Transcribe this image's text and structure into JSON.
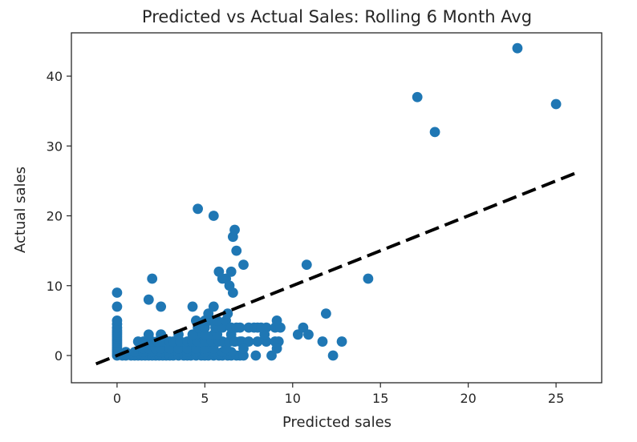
{
  "chart_data": {
    "type": "scatter",
    "title": "Predicted vs Actual Sales: Rolling 6 Month Avg",
    "xlabel": "Predicted sales",
    "ylabel": "Actual sales",
    "xlim": [
      -2.6,
      27.6
    ],
    "ylim": [
      -3.9,
      46.2
    ],
    "x_ticks": [
      0,
      5,
      10,
      15,
      20,
      25
    ],
    "x_tick_labels": [
      "0",
      "5",
      "10",
      "15",
      "20",
      "25"
    ],
    "y_ticks": [
      0,
      10,
      20,
      30,
      40
    ],
    "y_tick_labels": [
      "0",
      "10",
      "20",
      "30",
      "40"
    ],
    "grid": false,
    "legend": "none",
    "colors": {
      "points": "#1f77b4",
      "line": "#000000",
      "axes": "#262626"
    },
    "reference_line": {
      "style": "dashed",
      "x": [
        -1.2,
        26.3
      ],
      "y": [
        -1.2,
        26.3
      ]
    },
    "series": [
      {
        "x": [
          0,
          0,
          0,
          0,
          0,
          0,
          0,
          0,
          0,
          0,
          0,
          0,
          0,
          0,
          0,
          0,
          0,
          0,
          0.3,
          0.5,
          0.8,
          1.0,
          1.2,
          1.4,
          1.6,
          1.8,
          2.0,
          2.2,
          2.4,
          2.6,
          2.8,
          3.0,
          3.2,
          3.5,
          3.8,
          4.0,
          4.2,
          4.5,
          4.8,
          5.0,
          5.2,
          5.5,
          5.8,
          6.0,
          6.3,
          6.5,
          6.8,
          7.0,
          7.2,
          0.5,
          1.0,
          1.5,
          2.0,
          2.5,
          3.0,
          3.5,
          4.0,
          4.5,
          5.0,
          5.5,
          6.0,
          6.5,
          1.5,
          1.8,
          2.2,
          2.5,
          3.0,
          3.5,
          4.0,
          4.5,
          5.0,
          5.5,
          6.2,
          1.2,
          1.5,
          1.8,
          2.0,
          2.3,
          2.6,
          3.0,
          3.2,
          3.6,
          4.0,
          4.3,
          4.6,
          5.0,
          5.4,
          5.8,
          6.0,
          6.4,
          6.7,
          7.0,
          2.5,
          3.5,
          4.5,
          5.5,
          6.5,
          1.8,
          2.5,
          4.3,
          5.0,
          5.7,
          4.6,
          5.0,
          5.6,
          6.0,
          4.5,
          5.0,
          5.3,
          5.7,
          6.2,
          6.5,
          6.8,
          7.0,
          7.5,
          7.8,
          8.0,
          8.5,
          9.0,
          9.3,
          6.7,
          7.1,
          7.5,
          8.0,
          8.5,
          9.0,
          9.2,
          7.2,
          7.9,
          8.8,
          9.1,
          8.4,
          8.2,
          9.1,
          10.3,
          10.6,
          10.9,
          11.7,
          12.3,
          12.8,
          10.8,
          11.9,
          14.3,
          2.0,
          1.8,
          2.5,
          4.3,
          5.2,
          5.5,
          6.3,
          5.8,
          6.0,
          6.2,
          6.5,
          6.6,
          6.4,
          6.8,
          7.2,
          6.6,
          6.7,
          4.6,
          5.5,
          17.1,
          18.1,
          22.8,
          25.0
        ],
        "y": [
          0,
          0.3,
          0.6,
          0.9,
          1.2,
          1.5,
          1.8,
          2.1,
          2.4,
          2.7,
          3.0,
          3.3,
          3.6,
          4.0,
          4.5,
          5.0,
          7.0,
          9.0,
          0,
          0,
          0,
          0,
          0,
          0,
          0,
          0,
          0,
          0,
          0,
          0,
          0,
          0,
          0,
          0,
          0,
          0,
          0,
          0,
          0,
          0,
          0,
          0,
          0,
          0,
          0,
          0,
          0,
          0,
          0,
          0.5,
          0.5,
          0.5,
          0.5,
          0.5,
          0.5,
          0.5,
          0.5,
          0.5,
          0.5,
          0.5,
          0.5,
          0.5,
          1,
          1,
          1,
          1,
          1,
          1,
          1,
          1,
          1,
          1,
          1,
          2,
          2,
          2,
          2,
          2,
          2,
          2,
          2,
          2,
          2,
          2,
          2,
          2,
          2,
          2,
          2,
          2,
          2,
          2,
          3,
          3,
          3,
          3,
          3,
          3,
          3,
          3,
          3,
          3,
          4,
          4,
          4,
          4,
          5,
          5,
          5,
          5,
          5,
          4,
          4,
          4,
          4,
          4,
          4,
          4,
          4,
          4,
          2,
          2,
          2,
          2,
          2,
          2,
          2,
          1,
          0,
          0,
          1,
          3,
          4,
          5,
          3,
          4,
          3,
          2,
          0,
          2,
          13,
          6,
          11,
          11,
          8,
          7,
          7,
          6,
          7,
          6,
          12,
          11,
          11,
          12,
          9,
          10,
          15,
          13,
          17,
          18,
          21,
          20,
          37,
          32,
          44,
          36
        ]
      }
    ]
  }
}
